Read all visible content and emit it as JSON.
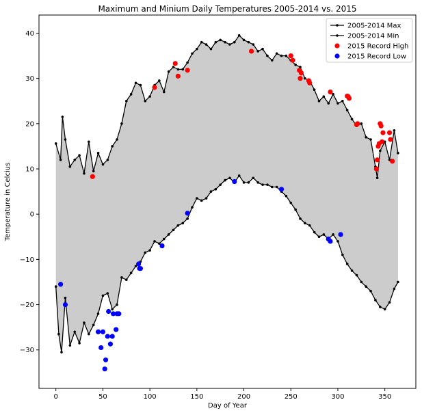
{
  "chart_data": {
    "type": "line",
    "title": "Maximum and Minium Daily Temperatures 2005-2014 vs. 2015",
    "xlabel": "Day of Year",
    "ylabel": "Temperature in Celcius",
    "xlim": [
      -18,
      383
    ],
    "ylim": [
      -38.5,
      44
    ],
    "xticks": [
      0,
      50,
      100,
      150,
      200,
      250,
      300,
      350
    ],
    "yticks": [
      -30,
      -20,
      -10,
      0,
      10,
      20,
      30,
      40
    ],
    "fill_between": {
      "color": "#cccccc",
      "series": [
        "2005-2014 Max",
        "2005-2014 Min"
      ]
    },
    "legend": {
      "placement": "top-right"
    },
    "series": [
      {
        "name": "2005-2014 Max",
        "type": "line-marker",
        "color": "#000000",
        "x": [
          0,
          5,
          7,
          10,
          15,
          20,
          25,
          30,
          35,
          40,
          45,
          50,
          55,
          60,
          65,
          70,
          75,
          80,
          85,
          90,
          95,
          100,
          105,
          110,
          115,
          120,
          125,
          130,
          135,
          140,
          145,
          150,
          155,
          160,
          165,
          170,
          175,
          180,
          185,
          190,
          195,
          200,
          205,
          210,
          215,
          220,
          225,
          230,
          235,
          240,
          245,
          250,
          255,
          260,
          265,
          270,
          275,
          280,
          285,
          290,
          295,
          300,
          305,
          310,
          315,
          320,
          325,
          330,
          335,
          340,
          342,
          345,
          350,
          355,
          360,
          364
        ],
        "y": [
          15.6,
          12.0,
          21.5,
          16.5,
          10.5,
          12.0,
          13.0,
          9.0,
          16.0,
          9.5,
          13.5,
          11.0,
          12.0,
          15.0,
          16.5,
          20.0,
          25.0,
          26.5,
          29.0,
          28.5,
          25.0,
          26.0,
          28.5,
          29.5,
          27.0,
          31.5,
          32.5,
          32.0,
          32.0,
          33.5,
          35.5,
          36.5,
          38.0,
          37.5,
          36.5,
          38.0,
          38.5,
          38.0,
          37.5,
          38.0,
          39.5,
          38.5,
          38.0,
          37.5,
          36.0,
          36.5,
          35.0,
          34.0,
          35.5,
          35.0,
          35.0,
          34.0,
          33.0,
          32.5,
          30.0,
          29.5,
          27.5,
          25.0,
          26.0,
          24.5,
          26.5,
          24.5,
          25.0,
          23.0,
          21.0,
          19.5,
          20.0,
          17.0,
          16.5,
          10.5,
          8.0,
          14.0,
          16.0,
          12.0,
          18.5,
          13.5
        ]
      },
      {
        "name": "2005-2014 Min",
        "type": "line-marker",
        "color": "#000000",
        "x": [
          0,
          3,
          6,
          10,
          15,
          20,
          25,
          30,
          35,
          40,
          45,
          50,
          55,
          60,
          65,
          70,
          75,
          80,
          85,
          90,
          95,
          100,
          105,
          110,
          115,
          120,
          125,
          130,
          135,
          140,
          145,
          150,
          155,
          160,
          165,
          170,
          175,
          180,
          185,
          190,
          195,
          200,
          205,
          210,
          215,
          220,
          225,
          230,
          235,
          240,
          245,
          250,
          255,
          260,
          265,
          270,
          275,
          280,
          285,
          290,
          295,
          300,
          305,
          310,
          315,
          320,
          325,
          330,
          335,
          340,
          345,
          350,
          355,
          360,
          364
        ],
        "y": [
          -16.0,
          -26.5,
          -30.5,
          -18.5,
          -29.0,
          -26.0,
          -28.5,
          -24.0,
          -26.5,
          -24.5,
          -22.0,
          -18.0,
          -17.5,
          -21.0,
          -20.0,
          -14.0,
          -14.5,
          -13.0,
          -11.5,
          -10.5,
          -8.5,
          -8.0,
          -6.0,
          -6.5,
          -5.5,
          -4.5,
          -3.5,
          -2.5,
          -2.0,
          -1.0,
          1.5,
          3.5,
          3.0,
          3.5,
          5.0,
          5.5,
          6.5,
          7.5,
          8.0,
          7.0,
          8.5,
          7.0,
          7.0,
          8.0,
          7.0,
          6.5,
          6.5,
          6.0,
          6.0,
          5.0,
          4.0,
          2.5,
          1.0,
          -1.0,
          -2.0,
          -2.5,
          -4.0,
          -5.0,
          -4.5,
          -5.5,
          -4.5,
          -6.0,
          -9.0,
          -11.0,
          -12.5,
          -13.5,
          -15.0,
          -16.0,
          -17.0,
          -19.0,
          -20.5,
          -21.0,
          -19.5,
          -16.5,
          -15.0
        ]
      },
      {
        "name": "2015 Record High",
        "type": "scatter",
        "color": "#ff0000",
        "x": [
          39,
          105,
          127,
          130,
          140,
          208,
          250,
          252,
          259,
          260,
          261,
          269,
          270,
          292,
          310,
          311,
          312,
          320,
          321,
          341,
          342,
          343,
          344,
          345,
          346,
          347,
          348,
          355,
          356,
          358
        ],
        "y": [
          8.3,
          28.0,
          33.3,
          30.5,
          31.8,
          36.0,
          35.0,
          34.0,
          31.8,
          30.0,
          31.2,
          29.5,
          29.0,
          27.0,
          26.1,
          26.0,
          25.6,
          19.8,
          20.0,
          10.0,
          12.0,
          15.0,
          15.6,
          20.0,
          19.5,
          16.0,
          18.0,
          18.0,
          16.5,
          11.7
        ]
      },
      {
        "name": "2015 Record Low",
        "type": "scatter",
        "color": "#0000ff",
        "x": [
          5,
          10,
          45,
          48,
          50,
          52,
          53,
          55,
          56,
          58,
          60,
          61,
          64,
          65,
          67,
          88,
          89,
          90,
          113,
          140,
          190,
          240,
          290,
          292,
          303
        ],
        "y": [
          -15.5,
          -20.0,
          -26.0,
          -29.5,
          -26.0,
          -34.2,
          -32.2,
          -27.0,
          -21.5,
          -28.7,
          -27.0,
          -22.0,
          -25.5,
          -22.0,
          -22.0,
          -11.0,
          -12.0,
          -12.0,
          -7.0,
          0.2,
          7.2,
          5.5,
          -5.5,
          -6.0,
          -4.5
        ]
      }
    ]
  }
}
